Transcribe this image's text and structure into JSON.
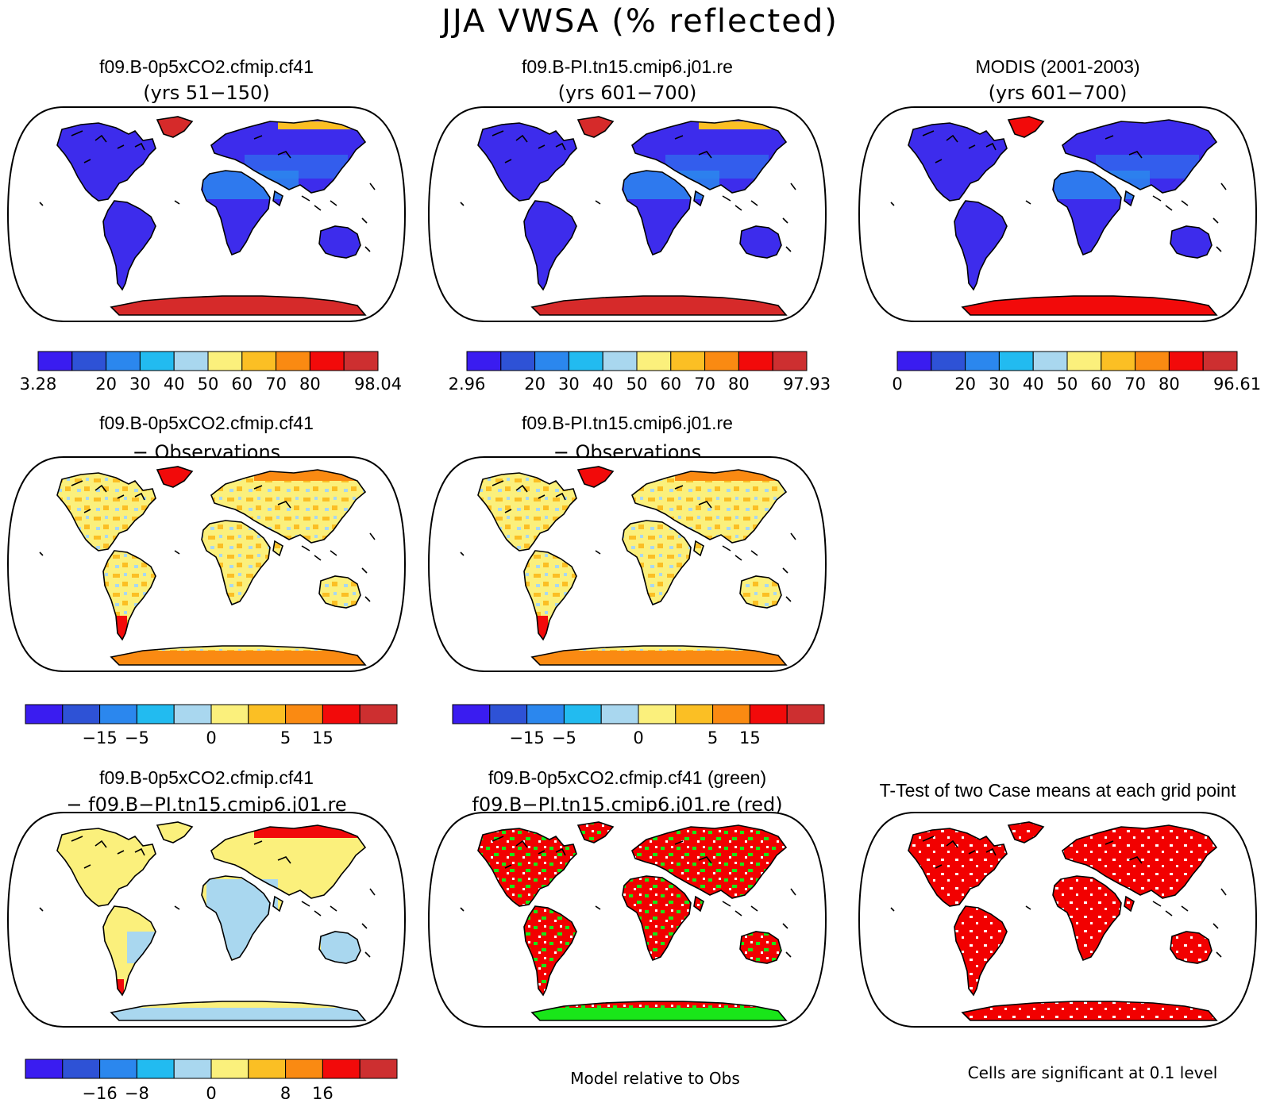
{
  "main_title": "JJA VWSA (% reflected)",
  "colors": {
    "abs": [
      "#3a1cf0",
      "#2e52d6",
      "#2b87ee",
      "#22bbf0",
      "#a9d7ef",
      "#fbf07c",
      "#fbbf24",
      "#fa8a12",
      "#f20a0a",
      "#cd2f30"
    ],
    "diff": [
      "#3a1cf0",
      "#2e52d6",
      "#2b87ee",
      "#22bbf0",
      "#a9d7ef",
      "#fbf07c",
      "#fbbf24",
      "#fa8a12",
      "#f20a0a",
      "#cd2f30"
    ],
    "land_abs_low": "#3d2cec",
    "land_abs_mid": "#2b87ee",
    "ice_red": "#d62a2a",
    "ice_red_obs": "#f20a0a",
    "diff_yellow": "#fbf07c",
    "diff_orange": "#fbbf24",
    "diff_blue": "#a9d7ef",
    "sig_red": "#f20000",
    "sig_green": "#19e619"
  },
  "panels": [
    {
      "id": "p1",
      "line1": "f09.B-0p5xCO2.cfmip.cf41",
      "line2": "(yrs 51−150)",
      "style": "abs",
      "palette": "abs"
    },
    {
      "id": "p2",
      "line1": "f09.B-PI.tn15.cmip6.j01.re",
      "line2": "(yrs 601−700)",
      "style": "abs",
      "palette": "abs"
    },
    {
      "id": "p3",
      "line1": "MODIS (2001-2003)",
      "line2": "(yrs 601−700)",
      "style": "obs",
      "palette": "abs"
    },
    {
      "id": "p4",
      "line1": "f09.B-0p5xCO2.cfmip.cf41",
      "line2": "− Observations",
      "style": "diff",
      "palette": "diff"
    },
    {
      "id": "p5",
      "line1": "f09.B-PI.tn15.cmip6.j01.re",
      "line2": "− Observations",
      "style": "diff",
      "palette": "diff"
    },
    {
      "id": "p7",
      "line1": "f09.B-0p5xCO2.cfmip.cf41",
      "line2": "− f09.B−PI.tn15.cmip6.j01.re",
      "style": "casediff",
      "palette": "diff"
    },
    {
      "id": "p8",
      "line1": "f09.B-0p5xCO2.cfmip.cf41 (green)",
      "line2": "f09.B−PI.tn15.cmip6.j01.re (red)",
      "style": "sig2",
      "palette": null
    },
    {
      "id": "p9",
      "line1": "T-Test of two Case means at each grid point",
      "line2": "",
      "style": "sig",
      "palette": null
    }
  ],
  "colorbars": [
    {
      "id": "cb1",
      "ticks": [
        "3.28",
        "20",
        "30",
        "40",
        "50",
        "60",
        "70",
        "80",
        "98.04"
      ]
    },
    {
      "id": "cb2",
      "ticks": [
        "2.96",
        "20",
        "30",
        "40",
        "50",
        "60",
        "70",
        "80",
        "97.93"
      ]
    },
    {
      "id": "cb3",
      "ticks": [
        "0",
        "20",
        "30",
        "40",
        "50",
        "60",
        "70",
        "80",
        "96.61"
      ]
    },
    {
      "id": "cb4",
      "ticks": [
        "−15",
        "−5",
        "0",
        "5",
        "15"
      ]
    },
    {
      "id": "cb5",
      "ticks": [
        "−15",
        "−5",
        "0",
        "5",
        "15"
      ]
    },
    {
      "id": "cb7",
      "ticks": [
        "−16",
        "−8",
        "0",
        "8",
        "16"
      ]
    }
  ],
  "footnotes": {
    "model_relative": "Model relative to Obs",
    "significance": "Cells are significant at 0.1 level"
  },
  "chart_data": [
    {
      "type": "heatmap",
      "title": "f09.B-0p5xCO2.cfmip.cf41 (yrs 51−150)",
      "colorbar_range": [
        3.28,
        98.04
      ],
      "colorbar_ticks": [
        "3.28",
        "20",
        "30",
        "40",
        "50",
        "60",
        "70",
        "80",
        "98.04"
      ]
    },
    {
      "type": "heatmap",
      "title": "f09.B-PI.tn15.cmip6.j01.re (yrs 601−700)",
      "colorbar_range": [
        2.96,
        97.93
      ],
      "colorbar_ticks": [
        "2.96",
        "20",
        "30",
        "40",
        "50",
        "60",
        "70",
        "80",
        "97.93"
      ]
    },
    {
      "type": "heatmap",
      "title": "MODIS (2001-2003) (yrs 601−700)",
      "colorbar_range": [
        0,
        96.61
      ],
      "colorbar_ticks": [
        "0",
        "20",
        "30",
        "40",
        "50",
        "60",
        "70",
        "80",
        "96.61"
      ]
    },
    {
      "type": "heatmap",
      "title": "f09.B-0p5xCO2.cfmip.cf41 − Observations",
      "colorbar_ticks": [
        "−15",
        "−5",
        "0",
        "5",
        "15"
      ]
    },
    {
      "type": "heatmap",
      "title": "f09.B-PI.tn15.cmip6.j01.re − Observations",
      "colorbar_ticks": [
        "−15",
        "−5",
        "0",
        "5",
        "15"
      ]
    },
    {
      "type": "heatmap",
      "title": "f09.B-0p5xCO2.cfmip.cf41 − f09.B−PI.tn15.cmip6.j01.re",
      "colorbar_ticks": [
        "−16",
        "−8",
        "0",
        "8",
        "16"
      ]
    },
    {
      "type": "heatmap",
      "title": "f09.B-0p5xCO2.cfmip.cf41 (green) f09.B−PI.tn15.cmip6.j01.re (red)"
    },
    {
      "type": "heatmap",
      "title": "T-Test of two Case means at each grid point"
    }
  ]
}
